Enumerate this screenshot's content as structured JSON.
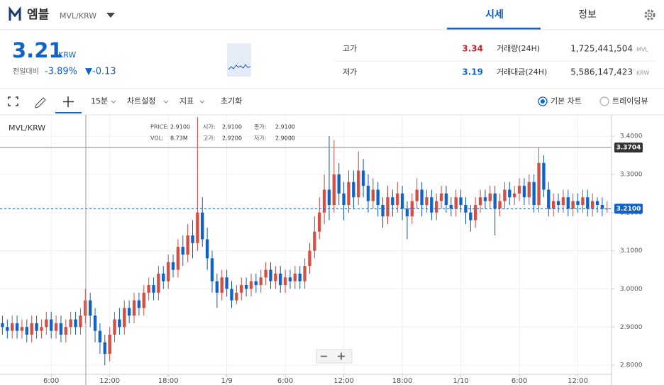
{
  "header": {
    "coin_name": "엠블",
    "pair": "MVL/KRW",
    "tabs": [
      "시세",
      "정보"
    ]
  },
  "summary": {
    "price": "3.21",
    "currency": "KRW",
    "change_label": "전일대비",
    "change_rate": "-3.89%",
    "change_amount": "▼-0.13"
  },
  "stats": [
    {
      "label": "고가",
      "value": "3.34"
    },
    {
      "label": "저가",
      "value": "3.19"
    },
    {
      "label": "거래량(24H)",
      "value": "1,725,441,504",
      "unit": "MVL"
    },
    {
      "label": "거래대금(24H)",
      "value": "5,586,147,423",
      "unit": "KRW"
    }
  ],
  "toolbar": {
    "interval": "15분",
    "settings": "차트설정",
    "indicators": "지표",
    "reset": "초기화",
    "chart_modes": [
      "기본 차트",
      "트레이딩뷰"
    ]
  },
  "chart_data": {
    "type": "candlestick",
    "title": "MVL/KRW",
    "crosshair_info": [
      {
        "label": "PRICE:",
        "value": "2.9100"
      },
      {
        "label": "시가:",
        "value": "2.9100"
      },
      {
        "label": "종가:",
        "value": "2.9100"
      },
      {
        "label": "VOL:",
        "value": "8.73M"
      },
      {
        "label": "고가:",
        "value": "2.9200"
      },
      {
        "label": "저가:",
        "value": "2.9000"
      }
    ],
    "up_color": "#d24f45",
    "down_color": "#1261c4",
    "grid": true,
    "xlim": [
      0,
      125.4
    ],
    "xticks": [
      {
        "value": 10.5,
        "label": "6:00"
      },
      {
        "value": 22.5,
        "label": "12:00"
      },
      {
        "value": 34.5,
        "label": "18:00"
      },
      {
        "value": 46.5,
        "label": "1/9"
      },
      {
        "value": 58.5,
        "label": "6:00"
      },
      {
        "value": 70.5,
        "label": "12:00"
      },
      {
        "value": 82.5,
        "label": "18:00"
      },
      {
        "value": 94.5,
        "label": "1/10"
      },
      {
        "value": 106.5,
        "label": "6:00"
      },
      {
        "value": 118.5,
        "label": "12:00"
      }
    ],
    "ylim": [
      2.776,
      3.456
    ],
    "yticks": [
      {
        "value": 2.8,
        "label": "2.8000"
      },
      {
        "value": 2.9,
        "label": "2.9000"
      },
      {
        "value": 3.0,
        "label": "3.0000"
      },
      {
        "value": 3.1,
        "label": "3.1000"
      },
      {
        "value": 3.2,
        "label": "3.2000"
      },
      {
        "value": 3.3,
        "label": "3.3000"
      },
      {
        "value": 3.4,
        "label": "3.4000"
      }
    ],
    "price_lines": [
      {
        "value": 3.3704,
        "label": "3.3704"
      },
      {
        "value": 3.21,
        "label": "3.2100"
      }
    ],
    "open": [
      2.91,
      2.9,
      2.89,
      2.91,
      2.89,
      2.9,
      2.88,
      2.91,
      2.89,
      2.9,
      2.92,
      2.89,
      2.91,
      2.88,
      2.9,
      2.92,
      2.9,
      2.93,
      2.97,
      2.93,
      2.89,
      2.86,
      2.83,
      2.88,
      2.92,
      2.9,
      2.95,
      2.93,
      2.97,
      2.95,
      2.99,
      3.01,
      2.99,
      3.04,
      3.02,
      3.07,
      3.05,
      3.11,
      3.09,
      3.14,
      3.12,
      3.2,
      3.13,
      3.08,
      3.02,
      2.99,
      3.03,
      3.0,
      2.97,
      2.99,
      3.01,
      3.0,
      3.02,
      3.01,
      3.03,
      3.05,
      3.02,
      3.04,
      3.01,
      3.03,
      3.02,
      3.04,
      3.02,
      3.06,
      3.1,
      3.15,
      3.2,
      3.26,
      3.22,
      3.3,
      3.25,
      3.22,
      3.28,
      3.24,
      3.31,
      3.27,
      3.23,
      3.26,
      3.22,
      3.19,
      3.24,
      3.22,
      3.25,
      3.21,
      3.19,
      3.23,
      3.26,
      3.22,
      3.24,
      3.2,
      3.23,
      3.25,
      3.22,
      3.21,
      3.24,
      3.22,
      3.2,
      3.18,
      3.22,
      3.24,
      3.23,
      3.25,
      3.21,
      3.23,
      3.26,
      3.24,
      3.25,
      3.27,
      3.24,
      3.28,
      3.22,
      3.33,
      3.26,
      3.21,
      3.23,
      3.22,
      3.24,
      3.21,
      3.23,
      3.22,
      3.24,
      3.21,
      3.23,
      3.22,
      3.21
    ],
    "high": [
      2.93,
      2.92,
      2.93,
      2.93,
      2.92,
      2.92,
      2.93,
      2.93,
      2.92,
      2.94,
      2.94,
      2.93,
      2.93,
      2.92,
      2.94,
      2.94,
      2.95,
      3.0,
      2.99,
      2.95,
      2.91,
      2.88,
      2.9,
      2.94,
      2.95,
      2.97,
      2.97,
      2.99,
      2.99,
      3.01,
      3.03,
      3.03,
      3.06,
      3.06,
      3.09,
      3.09,
      3.13,
      3.14,
      3.17,
      3.18,
      3.45,
      3.24,
      3.16,
      3.1,
      3.04,
      3.05,
      3.05,
      3.02,
      3.01,
      3.03,
      3.03,
      3.04,
      3.04,
      3.05,
      3.07,
      3.07,
      3.06,
      3.06,
      3.05,
      3.05,
      3.06,
      3.06,
      3.08,
      3.12,
      3.19,
      3.24,
      3.3,
      3.4,
      3.39,
      3.33,
      3.28,
      3.31,
      3.31,
      3.36,
      3.34,
      3.3,
      3.29,
      3.28,
      3.24,
      3.27,
      3.26,
      3.28,
      3.27,
      3.23,
      3.25,
      3.29,
      3.28,
      3.26,
      3.26,
      3.25,
      3.27,
      3.27,
      3.24,
      3.26,
      3.26,
      3.24,
      3.22,
      3.24,
      3.26,
      3.26,
      3.27,
      3.27,
      3.25,
      3.28,
      3.28,
      3.27,
      3.29,
      3.29,
      3.3,
      3.3,
      3.37,
      3.35,
      3.28,
      3.25,
      3.25,
      3.26,
      3.26,
      3.25,
      3.25,
      3.26,
      3.26,
      3.25,
      3.24,
      3.24,
      3.23
    ],
    "low": [
      2.88,
      2.87,
      2.87,
      2.87,
      2.87,
      2.86,
      2.86,
      2.87,
      2.87,
      2.88,
      2.87,
      2.87,
      2.86,
      2.86,
      2.88,
      2.88,
      2.88,
      2.91,
      2.9,
      2.86,
      2.83,
      2.8,
      2.81,
      2.86,
      2.88,
      2.88,
      2.91,
      2.91,
      2.93,
      2.93,
      2.97,
      2.97,
      2.97,
      3.0,
      3.0,
      3.03,
      3.03,
      3.06,
      3.07,
      3.08,
      3.1,
      3.11,
      3.05,
      2.99,
      2.95,
      2.97,
      2.98,
      2.95,
      2.96,
      2.97,
      2.98,
      2.98,
      2.99,
      2.99,
      3.01,
      3.0,
      3.0,
      2.99,
      2.99,
      3.0,
      3.0,
      3.0,
      3.0,
      3.04,
      3.08,
      3.13,
      3.17,
      3.18,
      3.2,
      3.22,
      3.18,
      3.2,
      3.21,
      3.22,
      3.24,
      3.2,
      3.21,
      3.19,
      3.16,
      3.17,
      3.19,
      3.2,
      3.18,
      3.13,
      3.17,
      3.21,
      3.19,
      3.2,
      3.18,
      3.18,
      3.21,
      3.2,
      3.19,
      3.19,
      3.2,
      3.17,
      3.15,
      3.16,
      3.2,
      3.21,
      3.21,
      3.14,
      3.19,
      3.21,
      3.22,
      3.22,
      3.23,
      3.22,
      3.22,
      3.2,
      3.2,
      3.24,
      3.19,
      3.19,
      3.2,
      3.2,
      3.19,
      3.19,
      3.2,
      3.2,
      3.19,
      3.19,
      3.2,
      3.19,
      3.2
    ],
    "close": [
      2.9,
      2.89,
      2.91,
      2.89,
      2.9,
      2.88,
      2.91,
      2.89,
      2.9,
      2.92,
      2.89,
      2.91,
      2.88,
      2.9,
      2.92,
      2.9,
      2.93,
      2.97,
      2.93,
      2.89,
      2.86,
      2.83,
      2.88,
      2.92,
      2.9,
      2.95,
      2.93,
      2.97,
      2.95,
      2.99,
      3.01,
      2.99,
      3.04,
      3.02,
      3.07,
      3.05,
      3.11,
      3.09,
      3.14,
      3.12,
      3.2,
      3.13,
      3.08,
      3.02,
      2.99,
      3.03,
      3.0,
      2.97,
      2.99,
      3.01,
      3.0,
      3.02,
      3.01,
      3.03,
      3.05,
      3.02,
      3.04,
      3.01,
      3.03,
      3.02,
      3.04,
      3.02,
      3.06,
      3.1,
      3.15,
      3.2,
      3.26,
      3.22,
      3.3,
      3.25,
      3.22,
      3.28,
      3.24,
      3.31,
      3.27,
      3.23,
      3.26,
      3.22,
      3.19,
      3.24,
      3.22,
      3.25,
      3.21,
      3.19,
      3.23,
      3.26,
      3.22,
      3.24,
      3.2,
      3.23,
      3.25,
      3.22,
      3.21,
      3.24,
      3.22,
      3.2,
      3.18,
      3.22,
      3.24,
      3.23,
      3.25,
      3.21,
      3.23,
      3.26,
      3.24,
      3.25,
      3.27,
      3.24,
      3.28,
      3.22,
      3.33,
      3.26,
      3.21,
      3.23,
      3.22,
      3.24,
      3.21,
      3.23,
      3.22,
      3.24,
      3.21,
      3.23,
      3.22,
      3.21,
      3.21
    ]
  }
}
